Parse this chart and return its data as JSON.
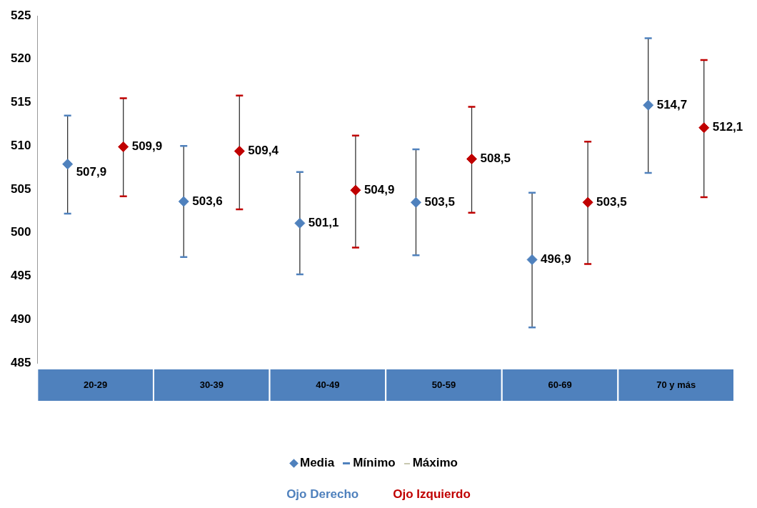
{
  "chart_data": {
    "type": "scatter",
    "categories": [
      "20-29",
      "30-39",
      "40-49",
      "50-59",
      "60-69",
      "70 y más"
    ],
    "series": [
      {
        "name": "Ojo Derecho",
        "color": "#4f81bd",
        "values": [
          507.9,
          503.6,
          501.1,
          503.5,
          496.9,
          514.7
        ],
        "errors": [
          [
            502.2,
            513.5
          ],
          [
            497.2,
            510.0
          ],
          [
            495.2,
            507.0
          ],
          [
            497.4,
            509.6
          ],
          [
            489.1,
            504.6
          ],
          [
            506.9,
            522.4
          ]
        ],
        "value_labels": [
          "507,9",
          "503,6",
          "501,1",
          "503,5",
          "496,9",
          "514,7"
        ]
      },
      {
        "name": "Ojo Izquierdo",
        "color": "#c00000",
        "values": [
          509.9,
          509.4,
          504.9,
          508.5,
          503.5,
          512.1
        ],
        "errors": [
          [
            504.2,
            515.5
          ],
          [
            502.7,
            515.8
          ],
          [
            498.3,
            511.2
          ],
          [
            502.3,
            514.5
          ],
          [
            496.4,
            510.5
          ],
          [
            504.1,
            519.9
          ]
        ],
        "value_labels": [
          "509,9",
          "509,4",
          "504,9",
          "508,5",
          "503,5",
          "512,1"
        ]
      }
    ],
    "ylim": [
      485,
      525
    ],
    "yticks": [
      485,
      490,
      495,
      500,
      505,
      510,
      515,
      520,
      525
    ],
    "marker": "diamond",
    "grid": false,
    "legend": "bottom",
    "annotations": [
      "Media",
      "Mínimo",
      "Máximo"
    ]
  }
}
